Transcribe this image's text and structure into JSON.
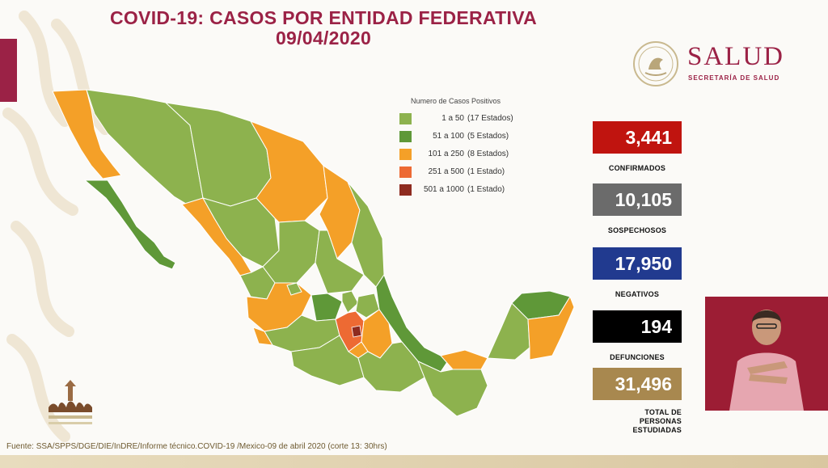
{
  "title": {
    "line1": "COVID-19: CASOS POR ENTIDAD FEDERATIVA",
    "line2": "09/04/2020"
  },
  "logo": {
    "name": "SALUD",
    "subtitle": "SECRETARÍA DE SALUD",
    "icon": "mexico-seal-icon"
  },
  "legend": {
    "title": "Numero de Casos Positivos",
    "items": [
      {
        "range": "1 a 50",
        "count": "(17 Estados)",
        "color": "#8db24e"
      },
      {
        "range": "51 a 100",
        "count": "(5 Estados)",
        "color": "#5f9838"
      },
      {
        "range": "101 a 250",
        "count": "(8 Estados)",
        "color": "#f4a028"
      },
      {
        "range": "251 a 500",
        "count": "(1 Estado)",
        "color": "#ed6a33"
      },
      {
        "range": "501 a 1000",
        "count": "(1 Estado)",
        "color": "#8e2b1f"
      }
    ]
  },
  "stats": [
    {
      "value": "3,441",
      "label": "CONFIRMADOS",
      "color": "#c0140f"
    },
    {
      "value": "10,105",
      "label": "SOSPECHOSOS",
      "color": "#6b6b6b"
    },
    {
      "value": "17,950",
      "label": "NEGATIVOS",
      "color": "#213a8f"
    },
    {
      "value": "194",
      "label": "DEFUNCIONES",
      "color": "#000000"
    },
    {
      "value": "31,496",
      "label_lines": [
        "TOTAL DE",
        "PERSONAS",
        "ESTUDIADAS"
      ],
      "color": "#a8884f"
    }
  ],
  "footer": "Fuente: SSA/SPPS/DGE/DIE/InDRE/Informe técnico.COVID-19 /Mexico-09 de abril 2020 (corte 13: 30hrs)"
}
